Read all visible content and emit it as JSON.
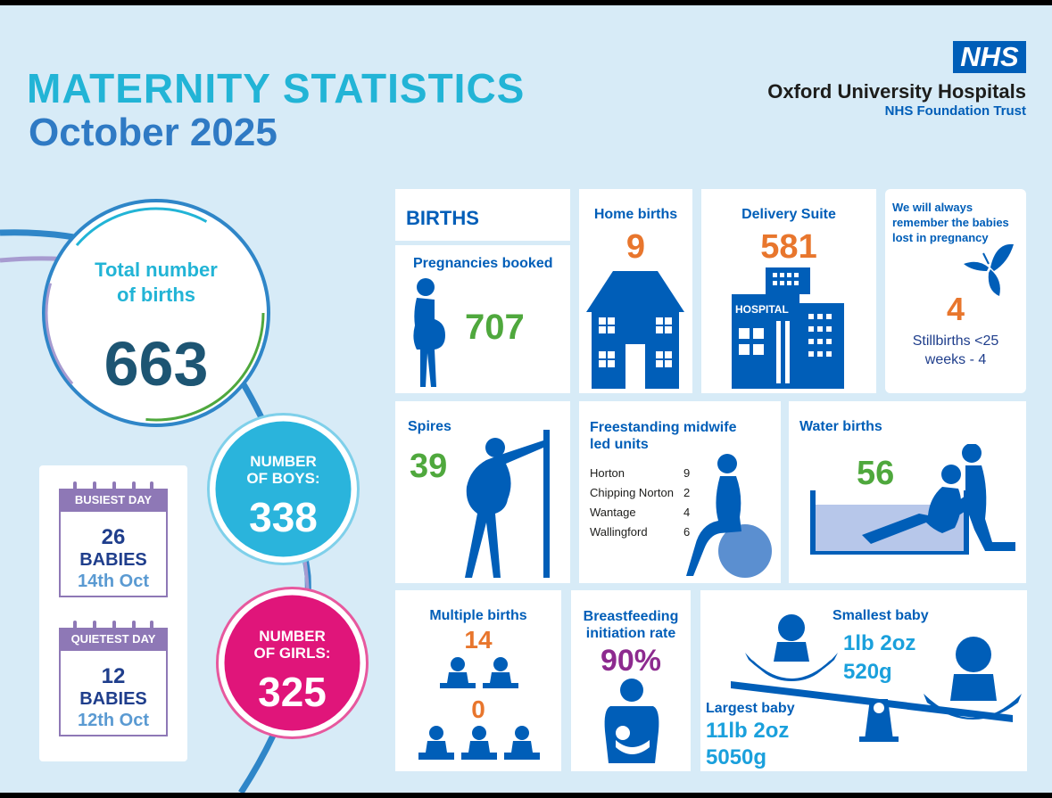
{
  "header": {
    "title": "MATERNITY STATISTICS",
    "period": "October 2025",
    "nhs_logo": "NHS",
    "trust_name": "Oxford University Hospitals",
    "trust_sub": "NHS Foundation Trust"
  },
  "totals": {
    "total_label_line1": "Total number",
    "total_label_line2": "of births",
    "total_value": "663",
    "boys_label_line1": "NUMBER",
    "boys_label_line2": "OF BOYS:",
    "boys_value": "338",
    "girls_label_line1": "NUMBER",
    "girls_label_line2": "OF GIRLS:",
    "girls_value": "325"
  },
  "days": {
    "busiest_label": "BUSIEST DAY",
    "busiest_count": "26",
    "busiest_unit": "BABIES",
    "busiest_date": "14th Oct",
    "quietest_label": "QUIETEST DAY",
    "quietest_count": "12",
    "quietest_unit": "BABIES",
    "quietest_date": "12th Oct"
  },
  "births": {
    "section_title": "BIRTHS",
    "pregnancies_label": "Pregnancies booked",
    "pregnancies_value": "707",
    "home_label": "Home births",
    "home_value": "9",
    "delivery_label": "Delivery Suite",
    "delivery_value": "581",
    "hospital_sign": "HOSPITAL",
    "remember_line1": "We will always",
    "remember_line2": "remember the babies",
    "remember_line3": "lost in pregnancy",
    "remember_value": "4",
    "stillbirths_line1": "Stillbirths <25",
    "stillbirths_line2": "weeks - 4",
    "spires_label": "Spires",
    "spires_value": "39",
    "midwife_label_line1": "Freestanding midwife",
    "midwife_label_line2": "led units",
    "midwife_units": [
      {
        "name": "Horton",
        "value": "9"
      },
      {
        "name": "Chipping Norton",
        "value": "2"
      },
      {
        "name": "Wantage",
        "value": "4"
      },
      {
        "name": "Wallingford",
        "value": "6"
      }
    ],
    "water_label": "Water births",
    "water_value": "56",
    "multiple_label": "Multiple births",
    "multiple_twins_value": "14",
    "multiple_triplets_value": "0",
    "breastfeeding_line1": "Breastfeeding",
    "breastfeeding_line2": "initiation rate",
    "breastfeeding_value": "90%",
    "smallest_label": "Smallest baby",
    "smallest_imperial": "1lb 2oz",
    "smallest_metric": "520g",
    "largest_label": "Largest baby",
    "largest_imperial": "11lb 2oz",
    "largest_metric": "5050g"
  },
  "colors": {
    "background": "#d7ebf7",
    "nhs_blue": "#005eb8",
    "title_cyan": "#22b4d6",
    "orange": "#e8762d",
    "green": "#4fa83d",
    "purple": "#8d2a8f",
    "boys_circle": "#2ab4dc",
    "girls_circle": "#e0157a",
    "calendar_purple": "#8e78b6"
  }
}
